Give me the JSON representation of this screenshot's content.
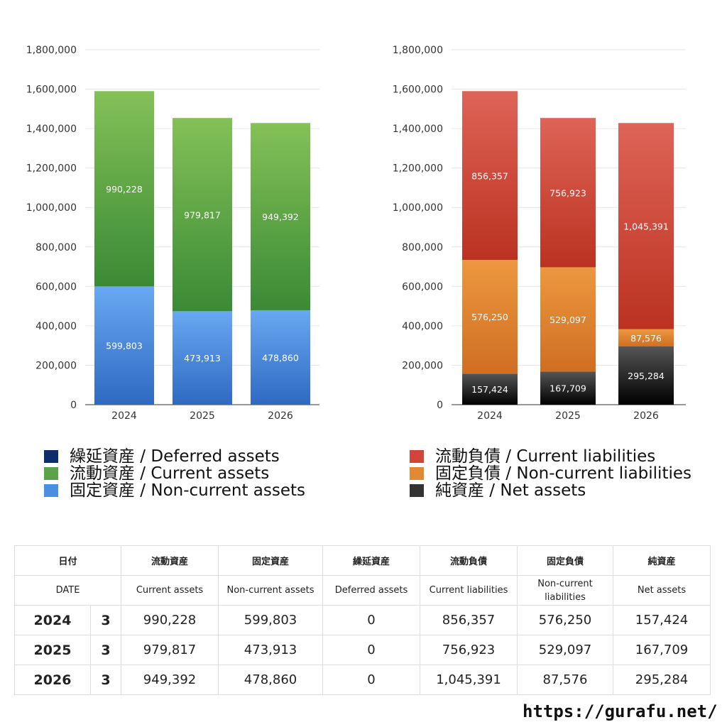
{
  "chart_data": [
    {
      "type": "bar",
      "stacked": true,
      "categories": [
        "2024",
        "2025",
        "2026"
      ],
      "ylim": [
        0,
        1800000
      ],
      "y_ticks": [
        "0",
        "200,000",
        "400,000",
        "600,000",
        "800,000",
        "1,000,000",
        "1,200,000",
        "1,400,000",
        "1,600,000",
        "1,800,000"
      ],
      "grid": true,
      "legend_placement": "bottom",
      "series": [
        {
          "name": "固定資産 / Non-current assets",
          "values": [
            599803,
            473913,
            478860
          ],
          "labels": [
            "599,803",
            "473,913",
            "478,860"
          ],
          "color": "#4a8fe0"
        },
        {
          "name": "流動資産 / Current assets",
          "values": [
            990228,
            979817,
            949392
          ],
          "labels": [
            "990,228",
            "979,817",
            "949,392"
          ],
          "color": "#5aa447"
        },
        {
          "name": "繰延資産 / Deferred assets",
          "values": [
            0,
            0,
            0
          ],
          "labels": [
            "",
            "",
            ""
          ],
          "color": "#0d2d6b"
        }
      ]
    },
    {
      "type": "bar",
      "stacked": true,
      "categories": [
        "2024",
        "2025",
        "2026"
      ],
      "ylim": [
        0,
        1800000
      ],
      "y_ticks": [
        "0",
        "200,000",
        "400,000",
        "600,000",
        "800,000",
        "1,000,000",
        "1,200,000",
        "1,400,000",
        "1,600,000",
        "1,800,000"
      ],
      "grid": true,
      "legend_placement": "bottom",
      "series": [
        {
          "name": "純資産 / Net assets",
          "values": [
            157424,
            167709,
            295284
          ],
          "labels": [
            "157,424",
            "167,709",
            "295,284"
          ],
          "color": "#333333"
        },
        {
          "name": "固定負債 / Non-current liabilities",
          "values": [
            576250,
            529097,
            87576
          ],
          "labels": [
            "576,250",
            "529,097",
            "87,576"
          ],
          "color": "#e08a35"
        },
        {
          "name": "流動負債 / Current liabilities",
          "values": [
            856357,
            756923,
            1045391
          ],
          "labels": [
            "856,357",
            "756,923",
            "1,045,391"
          ],
          "color": "#d0473a"
        }
      ]
    }
  ],
  "legend_left": [
    {
      "label": "繰延資産 / Deferred assets",
      "color": "#0d2d6b"
    },
    {
      "label": "流動資産 / Current assets",
      "color": "#5aa447"
    },
    {
      "label": "固定資産 / Non-current assets",
      "color": "#4a8fe0"
    }
  ],
  "legend_right": [
    {
      "label": "流動負債 / Current liabilities",
      "color": "#d0473a"
    },
    {
      "label": "固定負債 / Non-current liabilities",
      "color": "#e08a35"
    },
    {
      "label": "純資産 / Net assets",
      "color": "#333333"
    }
  ],
  "table": {
    "header_jp": [
      "日付",
      "流動資産",
      "固定資産",
      "繰延資産",
      "流動負債",
      "固定負債",
      "純資産"
    ],
    "header_en": [
      "DATE",
      "Current assets",
      "Non-current assets",
      "Deferred assets",
      "Current liabilities",
      "Non-current liabilities",
      "Net assets"
    ],
    "rows": [
      {
        "year": "2024",
        "month": "3",
        "cells": [
          "990,228",
          "599,803",
          "0",
          "856,357",
          "576,250",
          "157,424"
        ]
      },
      {
        "year": "2025",
        "month": "3",
        "cells": [
          "979,817",
          "473,913",
          "0",
          "756,923",
          "529,097",
          "167,709"
        ]
      },
      {
        "year": "2026",
        "month": "3",
        "cells": [
          "949,392",
          "478,860",
          "0",
          "1,045,391",
          "87,576",
          "295,284"
        ]
      }
    ]
  },
  "site": "https://gurafu.net/"
}
